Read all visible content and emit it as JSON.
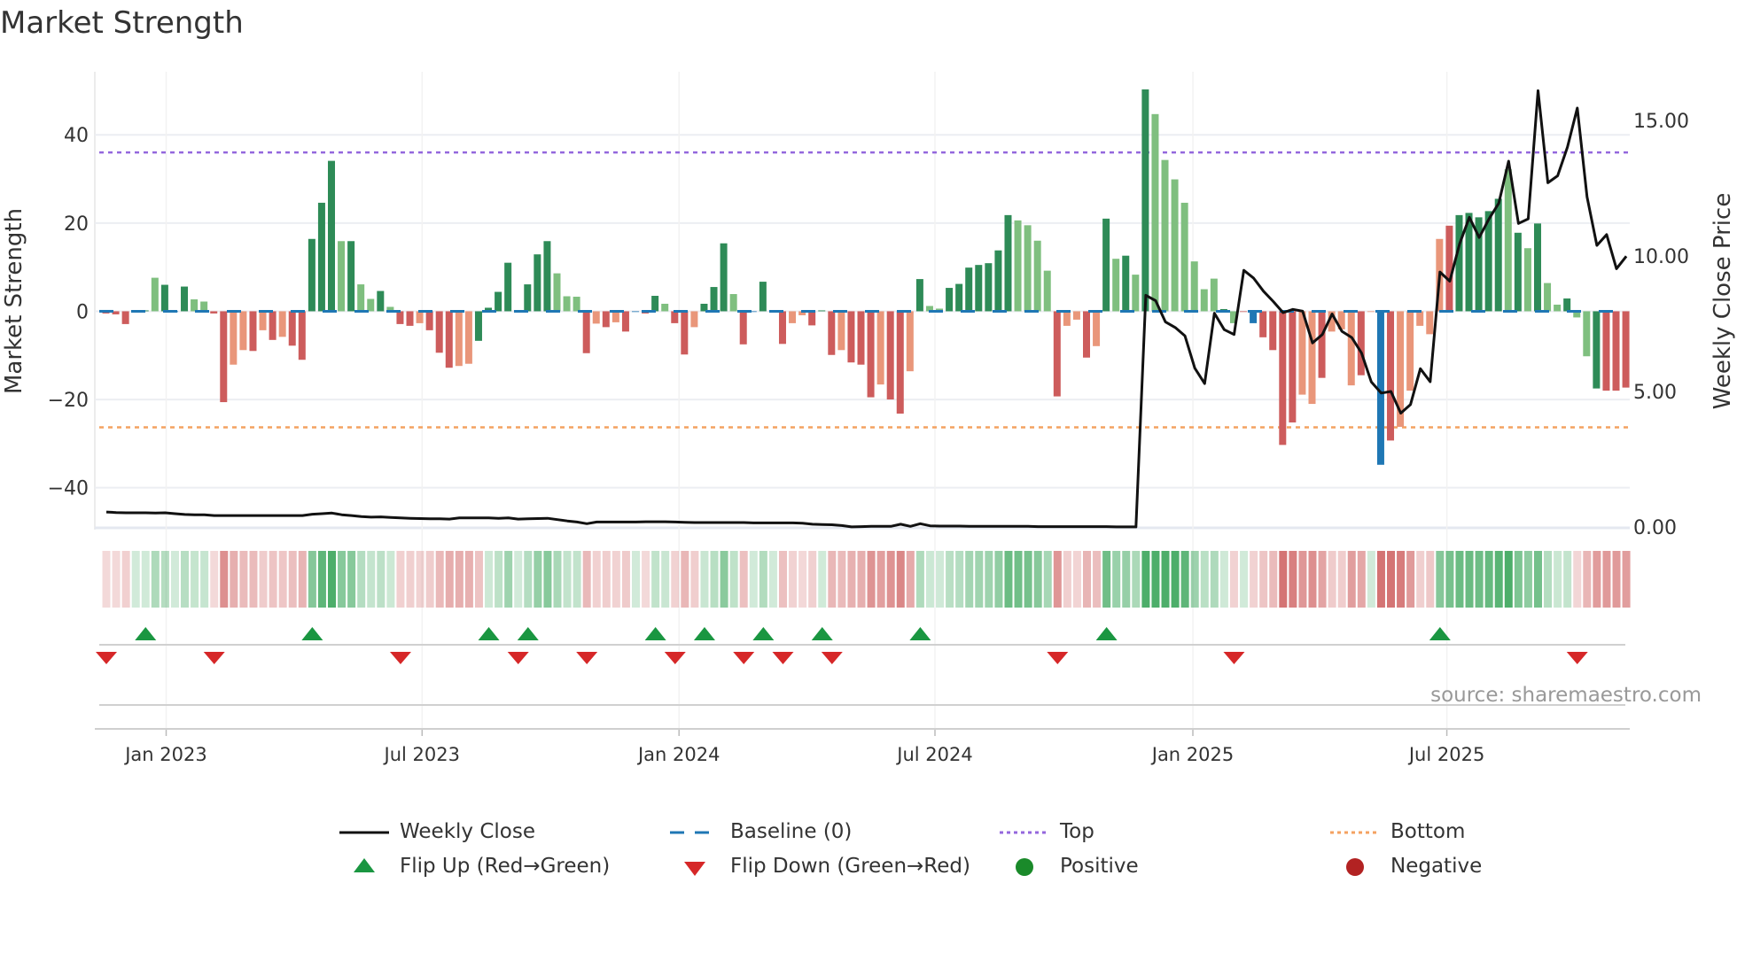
{
  "title": "Market Strength",
  "source": "source: sharemaestro.com",
  "legend": [
    {
      "label": "Weekly Close",
      "symbol": "solid-line",
      "color": "#111111"
    },
    {
      "label": "Baseline (0)",
      "symbol": "dashed-line",
      "color": "#1f77b4"
    },
    {
      "label": "Top",
      "symbol": "dotted-line",
      "color": "#9467dd"
    },
    {
      "label": "Bottom",
      "symbol": "dotted-line",
      "color": "#f4a261"
    },
    {
      "label": "Flip Up (Red→Green)",
      "symbol": "triangle-up",
      "color": "#1a9641"
    },
    {
      "label": "Flip Down (Green→Red)",
      "symbol": "triangle-down",
      "color": "#d62728"
    },
    {
      "label": "Positive",
      "symbol": "circle",
      "color": "#1a8a2a"
    },
    {
      "label": "Negative",
      "symbol": "circle",
      "color": "#b22222"
    }
  ],
  "colors": {
    "strong_pos": "#2e8b57",
    "weak_pos": "#7fbf7f",
    "strong_neg": "#cd5c5c",
    "weak_neg": "#e9967a",
    "baseline": "#1f77b4",
    "top": "#9467dd",
    "bottom": "#f4a261",
    "price": "#111111",
    "flip_up": "#1a9641",
    "flip_down": "#d62728"
  },
  "chart_data": {
    "type": "bar",
    "title": "Market Strength",
    "ylabel": "Market Strength",
    "y2label": "Weekly Close Price",
    "ylim": [
      -49.5,
      54.3
    ],
    "y2lim": [
      -0.1,
      16.8
    ],
    "yticks": [
      -40,
      -20,
      0,
      20,
      40
    ],
    "yticklabels": [
      "−40",
      "−20",
      "0",
      "20",
      "40"
    ],
    "y2ticks": [
      0,
      5,
      10,
      15
    ],
    "y2ticklabels": [
      "0.00",
      "5.00",
      "10.00",
      "15.00"
    ],
    "xticks": [
      {
        "week": 6.1,
        "label": "Jan 2023"
      },
      {
        "week": 32.2,
        "label": "Jul 2023"
      },
      {
        "week": 58.4,
        "label": "Jan 2024"
      },
      {
        "week": 84.5,
        "label": "Jul 2024"
      },
      {
        "week": 110.8,
        "label": "Jan 2025"
      },
      {
        "week": 136.7,
        "label": "Jul 2025"
      }
    ],
    "top_level": 36,
    "bottom_level": -26.3,
    "strength": [
      -0.5,
      -0.7,
      -2.9,
      0,
      0.2,
      7.6,
      6.0,
      0,
      5.6,
      2.7,
      2.2,
      -0.5,
      -20.6,
      -12.1,
      -8.8,
      -9,
      -4.3,
      -6.5,
      -5.8,
      -7.8,
      -11,
      16.4,
      24.6,
      34.1,
      15.9,
      15.9,
      6.1,
      2.8,
      4.6,
      1,
      -2.9,
      -3.3,
      -2.7,
      -4.3,
      -9.4,
      -12.8,
      -12.4,
      -11.9,
      -6.7,
      0.8,
      4.4,
      11,
      0,
      6.1,
      12.9,
      15.9,
      8.6,
      3.4,
      3.3,
      -9.5,
      -2.8,
      -3.6,
      -2.5,
      -4.6,
      0,
      -0.5,
      3.5,
      1.7,
      -2.7,
      -9.8,
      -3.6,
      1.7,
      5.5,
      15.4,
      3.9,
      -7.5,
      0,
      6.7,
      0,
      -7.4,
      -2.7,
      -0.9,
      -3.2,
      0.2,
      -9.9,
      -8.8,
      -11.6,
      -12.1,
      -19.5,
      -16.6,
      -20,
      -23.2,
      -13.6,
      7.3,
      1.2,
      0.6,
      5.3,
      6.2,
      9.9,
      10.5,
      10.9,
      13.8,
      21.8,
      20.6,
      19.5,
      16,
      9.2,
      -19.3,
      -3.3,
      -1.9,
      -10.5,
      -7.9,
      21,
      11.9,
      12.6,
      8.3,
      50.3,
      44.7,
      34.3,
      29.9,
      24.6,
      11.3,
      5,
      7.4,
      0.5,
      -2.7,
      0,
      -2.7,
      -5.9,
      -8.8,
      -30.3,
      -25.2,
      -18.9,
      -21,
      -15.1,
      -4.6,
      -4.1,
      -16.8,
      -14.5,
      0,
      -34.8,
      -29.3,
      -26.2,
      -18,
      -3.3,
      -5.2,
      16.4,
      19.4,
      21.8,
      22.3,
      21.3,
      22.7,
      25.5,
      32.2,
      17.8,
      14.3,
      19.9,
      6.4,
      1.5,
      2.9,
      -1.4,
      -10.2,
      -17.5,
      -18,
      -18,
      -17.3
    ],
    "strength_shade": "rrrbdldbdllrrssrsrsrrdddldlldlrrsrrrssddddbdddlllrsrsrbrdlrrsdddlrbdbrssrdrsrrrsrrsdlldddddddllllrssrsdldldllllllldlrbrrrrssrsssrsbrsssssrdddddldldlldlldrrrrss",
    "price": [
      0.55,
      0.53,
      0.52,
      0.52,
      0.52,
      0.51,
      0.52,
      0.49,
      0.46,
      0.45,
      0.45,
      0.42,
      0.42,
      0.42,
      0.42,
      0.42,
      0.42,
      0.42,
      0.42,
      0.42,
      0.42,
      0.47,
      0.49,
      0.51,
      0.45,
      0.42,
      0.38,
      0.36,
      0.37,
      0.35,
      0.33,
      0.32,
      0.31,
      0.3,
      0.3,
      0.29,
      0.33,
      0.33,
      0.33,
      0.33,
      0.32,
      0.33,
      0.29,
      0.3,
      0.31,
      0.32,
      0.27,
      0.22,
      0.18,
      0.12,
      0.18,
      0.18,
      0.18,
      0.18,
      0.18,
      0.19,
      0.19,
      0.19,
      0.18,
      0.17,
      0.16,
      0.16,
      0.16,
      0.16,
      0.16,
      0.16,
      0.15,
      0.15,
      0.15,
      0.15,
      0.15,
      0.14,
      0.1,
      0.09,
      0.08,
      0.05,
      0.0,
      0.01,
      0.02,
      0.02,
      0.02,
      0.1,
      0.02,
      0.12,
      0.04,
      0.03,
      0.03,
      0.03,
      0.02,
      0.02,
      0.02,
      0.02,
      0.02,
      0.02,
      0.02,
      0.01,
      0.01,
      0.01,
      0.01,
      0.01,
      0.01,
      0.01,
      0.01,
      0.0,
      0.0,
      0.0,
      8.55,
      8.35,
      7.57,
      7.36,
      7.05,
      5.86,
      5.29,
      7.89,
      7.28,
      7.1,
      9.47,
      9.18,
      8.7,
      8.32,
      7.91,
      8.03,
      7.96,
      6.79,
      7.1,
      7.86,
      7.22,
      6.99,
      6.42,
      5.35,
      4.94,
      5.0,
      4.2,
      4.52,
      5.84,
      5.36,
      9.41,
      9.07,
      10.45,
      11.43,
      10.68,
      11.37,
      11.95,
      13.5,
      11.2,
      11.37,
      16.1,
      12.7,
      12.96,
      14.02,
      15.46,
      12.18,
      10.39,
      10.79,
      9.53,
      9.99
    ],
    "flip_up_weeks": [
      4,
      21,
      39,
      43,
      56,
      61,
      67,
      73,
      83,
      102,
      136
    ],
    "flip_down_weeks": [
      0,
      11,
      30,
      42,
      49,
      58,
      65,
      69,
      74,
      97,
      115,
      150
    ]
  }
}
